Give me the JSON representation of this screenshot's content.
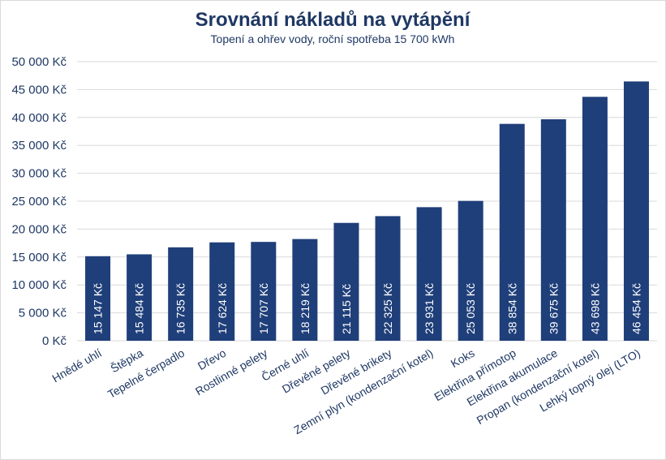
{
  "chart_data": {
    "type": "bar",
    "title": "Srovnání nákladů na vytápění",
    "subtitle": "Topení a ohřev vody, roční spotřeba 15 700 kWh",
    "xlabel": "",
    "ylabel": "",
    "ylim": [
      0,
      50000
    ],
    "grid": true,
    "unit_suffix": " Kč",
    "y_ticks": [
      "0 Kč",
      "5 000 Kč",
      "10 000 Kč",
      "15 000 Kč",
      "20 000 Kč",
      "25 000 Kč",
      "30 000 Kč",
      "35 000 Kč",
      "40 000 Kč",
      "45 000 Kč",
      "50 000 Kč"
    ],
    "categories": [
      "Hnědé uhlí",
      "Štěpka",
      "Tepelné čerpadlo",
      "Dřevo",
      "Rostlinné pelety",
      "Černé uhlí",
      "Dřevěné pelety",
      "Dřevěné brikety",
      "Zemní plyn (kondenzační kotel)",
      "Koks",
      "Elektřina přímotop",
      "Elektřina akumulace",
      "Propan (kondenzační kotel)",
      "Lehký topný olej (LTO)"
    ],
    "values": [
      15147,
      15484,
      16735,
      17624,
      17707,
      18219,
      21115,
      22325,
      23931,
      25053,
      38854,
      39675,
      43698,
      46454
    ],
    "data_labels": [
      "15 147 Kč",
      "15 484 Kč",
      "16 735 Kč",
      "17 624 Kč",
      "17 707 Kč",
      "18 219 Kč",
      "21 115 Kč",
      "22 325 Kč",
      "23 931 Kč",
      "25 053 Kč",
      "38 854 Kč",
      "39 675 Kč",
      "43 698 Kč",
      "46 454 Kč"
    ],
    "colors": {
      "bar": "#1f3f7a",
      "grid": "#d9d9d9",
      "text": "#1f3864"
    }
  }
}
